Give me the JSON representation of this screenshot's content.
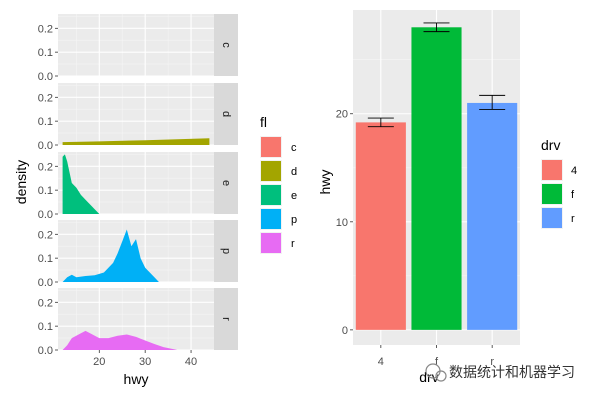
{
  "chart_data": [
    {
      "type": "area",
      "facet_var": "fl",
      "xlabel": "hwy",
      "ylabel": "density",
      "xlim": [
        11,
        45
      ],
      "x_ticks": [
        20,
        30,
        40
      ],
      "ylim": [
        0,
        0.26
      ],
      "y_ticks": [
        0.0,
        0.1,
        0.2
      ],
      "legend": {
        "title": "fl",
        "position": "right",
        "entries": [
          {
            "label": "c",
            "color": "#F8766D"
          },
          {
            "label": "d",
            "color": "#A3A500"
          },
          {
            "label": "e",
            "color": "#00BF7D"
          },
          {
            "label": "p",
            "color": "#00B0F6"
          },
          {
            "label": "r",
            "color": "#E76BF3"
          }
        ]
      },
      "panels": [
        {
          "strip": "c",
          "color": "#F8766D",
          "points": []
        },
        {
          "strip": "d",
          "color": "#A3A500",
          "points": [
            [
              12,
              0.012
            ],
            [
              20,
              0.015
            ],
            [
              30,
              0.02
            ],
            [
              44,
              0.028
            ]
          ]
        },
        {
          "strip": "e",
          "color": "#00BF7D",
          "points": [
            [
              12,
              0.24
            ],
            [
              12.5,
              0.25
            ],
            [
              13,
              0.22
            ],
            [
              14,
              0.13
            ],
            [
              15,
              0.11
            ],
            [
              16,
              0.08
            ],
            [
              17,
              0.06
            ],
            [
              18,
              0.04
            ],
            [
              19,
              0.02
            ],
            [
              20,
              0.0
            ]
          ]
        },
        {
          "strip": "p",
          "color": "#00B0F6",
          "points": [
            [
              12,
              0.0
            ],
            [
              13,
              0.02
            ],
            [
              14,
              0.03
            ],
            [
              15,
              0.02
            ],
            [
              17,
              0.025
            ],
            [
              19,
              0.028
            ],
            [
              21,
              0.04
            ],
            [
              23,
              0.08
            ],
            [
              24,
              0.12
            ],
            [
              25,
              0.17
            ],
            [
              26,
              0.22
            ],
            [
              27,
              0.15
            ],
            [
              28,
              0.18
            ],
            [
              29,
              0.1
            ],
            [
              30,
              0.06
            ],
            [
              31,
              0.04
            ],
            [
              32,
              0.02
            ],
            [
              33,
              0.0
            ]
          ]
        },
        {
          "strip": "r",
          "color": "#E76BF3",
          "points": [
            [
              12,
              0.0
            ],
            [
              13,
              0.02
            ],
            [
              14,
              0.05
            ],
            [
              16,
              0.07
            ],
            [
              17,
              0.08
            ],
            [
              18,
              0.07
            ],
            [
              20,
              0.05
            ],
            [
              22,
              0.05
            ],
            [
              24,
              0.06
            ],
            [
              26,
              0.065
            ],
            [
              28,
              0.055
            ],
            [
              30,
              0.04
            ],
            [
              32,
              0.025
            ],
            [
              34,
              0.012
            ],
            [
              36,
              0.004
            ],
            [
              37,
              0.0
            ]
          ]
        }
      ]
    },
    {
      "type": "bar",
      "xlabel": "drv",
      "ylabel": "hwy",
      "categories": [
        "4",
        "f",
        "r"
      ],
      "values": [
        19.2,
        28.0,
        21.0
      ],
      "errors": [
        [
          18.8,
          19.6
        ],
        [
          27.6,
          28.4
        ],
        [
          20.4,
          21.7
        ]
      ],
      "colors": [
        "#F8766D",
        "#00BA38",
        "#619CFF"
      ],
      "ylim": [
        -1.4,
        29.6
      ],
      "y_ticks": [
        0,
        10,
        20
      ],
      "legend": {
        "title": "drv",
        "position": "right",
        "entries": [
          {
            "label": "4",
            "color": "#F8766D"
          },
          {
            "label": "f",
            "color": "#00BA38"
          },
          {
            "label": "r",
            "color": "#619CFF"
          }
        ]
      }
    }
  ],
  "watermark": {
    "text": "数据统计和机器学习",
    "icon": "wechat-icon"
  }
}
